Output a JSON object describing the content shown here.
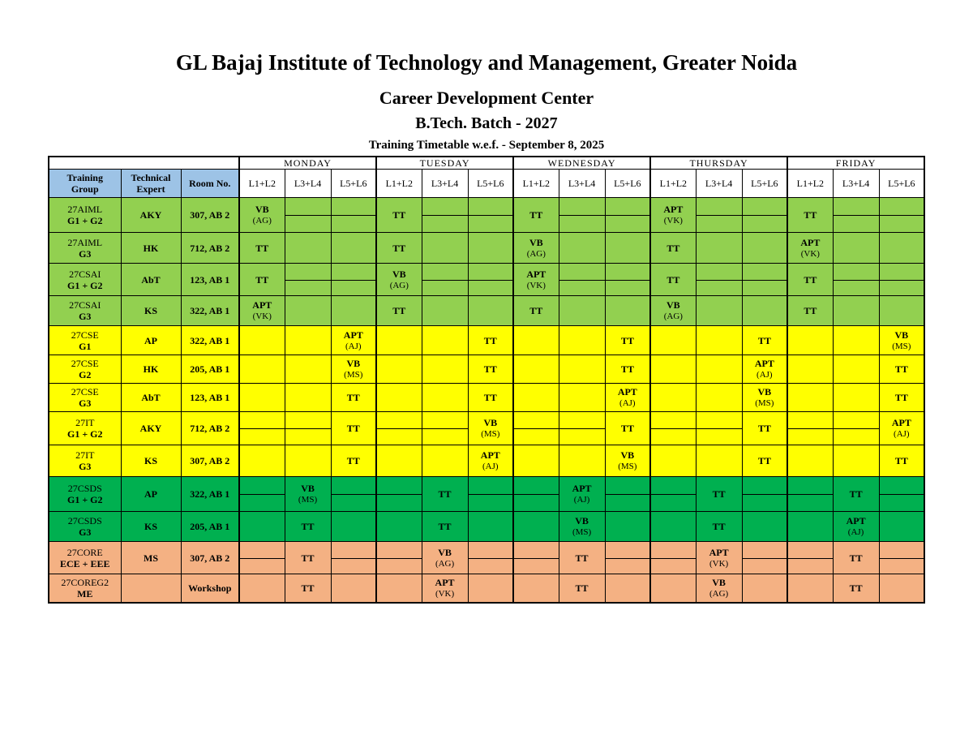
{
  "header": {
    "institute": "GL Bajaj Institute of Technology and Management, Greater Noida",
    "center": "Career Development Center",
    "batch": "B.Tech. Batch - 2027",
    "subtitle": "Training Timetable w.e.f. - September 8, 2025"
  },
  "days": [
    "MONDAY",
    "TUESDAY",
    "WEDNESDAY",
    "THURSDAY",
    "FRIDAY"
  ],
  "columns": {
    "group": "Training Group",
    "group_l1": "Training",
    "group_l2": "Group",
    "expert_l1": "Technical",
    "expert_l2": "Expert",
    "room": "Room No.",
    "slots": [
      "L1+L2",
      "L3+L4",
      "L5+L6"
    ]
  },
  "colors": {
    "light_green": "#92d050",
    "yellow": "#ffff00",
    "green": "#00b050",
    "peach": "#f4b183",
    "header_blue": "#9dc3e6"
  },
  "rows": [
    {
      "color": "g1",
      "name": "27AIML",
      "sub": "G1 + G2",
      "expert": "AKY",
      "room": "307, AB 2",
      "split": true,
      "cells": [
        [
          "VB",
          "(AG)"
        ],
        [],
        [],
        [
          "TT"
        ],
        [],
        [],
        [
          "TT"
        ],
        [],
        [],
        [
          "APT",
          "(VK)"
        ],
        [],
        [],
        [
          "TT"
        ],
        [],
        []
      ]
    },
    {
      "color": "g1",
      "name": "27AIML",
      "sub": "G3",
      "expert": "HK",
      "room": "712, AB 2",
      "split": false,
      "cells": [
        [
          "TT"
        ],
        [],
        [],
        [
          "TT"
        ],
        [],
        [],
        [
          "VB",
          "(AG)"
        ],
        [],
        [],
        [
          "TT"
        ],
        [],
        [],
        [
          "APT",
          "(VK)"
        ],
        [],
        []
      ]
    },
    {
      "color": "g1",
      "name": "27CSAI",
      "sub": "G1 + G2",
      "expert": "AbT",
      "room": "123, AB 1",
      "split": true,
      "cells": [
        [
          "TT"
        ],
        [],
        [],
        [
          "VB",
          "(AG)"
        ],
        [],
        [],
        [
          "APT",
          "(VK)"
        ],
        [],
        [],
        [
          "TT"
        ],
        [],
        [],
        [
          "TT"
        ],
        [],
        []
      ]
    },
    {
      "color": "g1",
      "name": "27CSAI",
      "sub": "G3",
      "expert": "KS",
      "room": "322, AB 1",
      "split": false,
      "cells": [
        [
          "APT",
          "(VK)"
        ],
        [],
        [],
        [
          "TT"
        ],
        [],
        [],
        [
          "TT"
        ],
        [],
        [],
        [
          "VB",
          "(AG)"
        ],
        [],
        [],
        [
          "TT"
        ],
        [],
        []
      ]
    },
    {
      "color": "y",
      "name": "27CSE",
      "sub": "G1",
      "expert": "AP",
      "room": "322, AB 1",
      "split": false,
      "cells": [
        [],
        [],
        [
          "APT",
          "(AJ)"
        ],
        [],
        [],
        [
          "TT"
        ],
        [],
        [],
        [
          "TT"
        ],
        [],
        [],
        [
          "TT"
        ],
        [],
        [],
        [
          "VB",
          "(MS)"
        ]
      ]
    },
    {
      "color": "y",
      "name": "27CSE",
      "sub": "G2",
      "expert": "HK",
      "room": "205, AB 1",
      "split": false,
      "cells": [
        [],
        [],
        [
          "VB",
          "(MS)"
        ],
        [],
        [],
        [
          "TT"
        ],
        [],
        [],
        [
          "TT"
        ],
        [],
        [],
        [
          "APT",
          "(AJ)"
        ],
        [],
        [],
        [
          "TT"
        ]
      ]
    },
    {
      "color": "y",
      "name": "27CSE",
      "sub": "G3",
      "expert": "AbT",
      "room": "123, AB 1",
      "split": false,
      "cells": [
        [],
        [],
        [
          "TT"
        ],
        [],
        [],
        [
          "TT"
        ],
        [],
        [],
        [
          "APT",
          "(AJ)"
        ],
        [],
        [],
        [
          "VB",
          "(MS)"
        ],
        [],
        [],
        [
          "TT"
        ]
      ]
    },
    {
      "color": "y",
      "name": "27IT",
      "sub": "G1 + G2",
      "expert": "AKY",
      "room": "712, AB 2",
      "split": true,
      "cells": [
        [],
        [],
        [
          "TT"
        ],
        [],
        [],
        [
          "VB",
          "(MS)"
        ],
        [],
        [],
        [
          "TT"
        ],
        [],
        [],
        [
          "TT"
        ],
        [],
        [],
        [
          "APT",
          "(AJ)"
        ]
      ]
    },
    {
      "color": "y",
      "name": "27IT",
      "sub": "G3",
      "expert": "KS",
      "room": "307, AB 2",
      "split": false,
      "cells": [
        [],
        [],
        [
          "TT"
        ],
        [],
        [],
        [
          "APT",
          "(AJ)"
        ],
        [],
        [],
        [
          "VB",
          "(MS)"
        ],
        [],
        [],
        [
          "TT"
        ],
        [],
        [],
        [
          "TT"
        ]
      ]
    },
    {
      "color": "g2",
      "name": "27CSDS",
      "sub": "G1 + G2",
      "expert": "AP",
      "room": "322, AB 1",
      "split": true,
      "cells": [
        [],
        [
          "VB",
          "(MS)"
        ],
        [],
        [],
        [
          "TT"
        ],
        [],
        [],
        [
          "APT",
          "(AJ)"
        ],
        [],
        [],
        [
          "TT"
        ],
        [],
        [],
        [
          "TT"
        ],
        []
      ]
    },
    {
      "color": "g2",
      "name": "27CSDS",
      "sub": "G3",
      "expert": "KS",
      "room": "205, AB 1",
      "split": false,
      "cells": [
        [],
        [
          "TT"
        ],
        [],
        [],
        [
          "TT"
        ],
        [],
        [],
        [
          "VB",
          "(MS)"
        ],
        [],
        [],
        [
          "TT"
        ],
        [],
        [],
        [
          "APT",
          "(AJ)"
        ],
        []
      ]
    },
    {
      "color": "o",
      "name": "27CORE",
      "sub": "ECE + EEE",
      "expert": "MS",
      "room": "307, AB 2",
      "split": true,
      "small": true,
      "cells": [
        [],
        [
          "TT"
        ],
        [],
        [],
        [
          "VB",
          "(AG)"
        ],
        [],
        [],
        [
          "TT"
        ],
        [],
        [],
        [
          "APT",
          "(VK)"
        ],
        [],
        [],
        [
          "TT"
        ],
        []
      ]
    },
    {
      "color": "o",
      "name": "27COREG2",
      "sub": "ME",
      "expert": "",
      "room": "Workshop",
      "split": false,
      "small": true,
      "cells": [
        [],
        [
          "TT"
        ],
        [],
        [],
        [
          "APT",
          "(VK)"
        ],
        [],
        [],
        [
          "TT"
        ],
        [],
        [],
        [
          "VB",
          "(AG)"
        ],
        [],
        [],
        [
          "TT"
        ],
        []
      ]
    }
  ]
}
